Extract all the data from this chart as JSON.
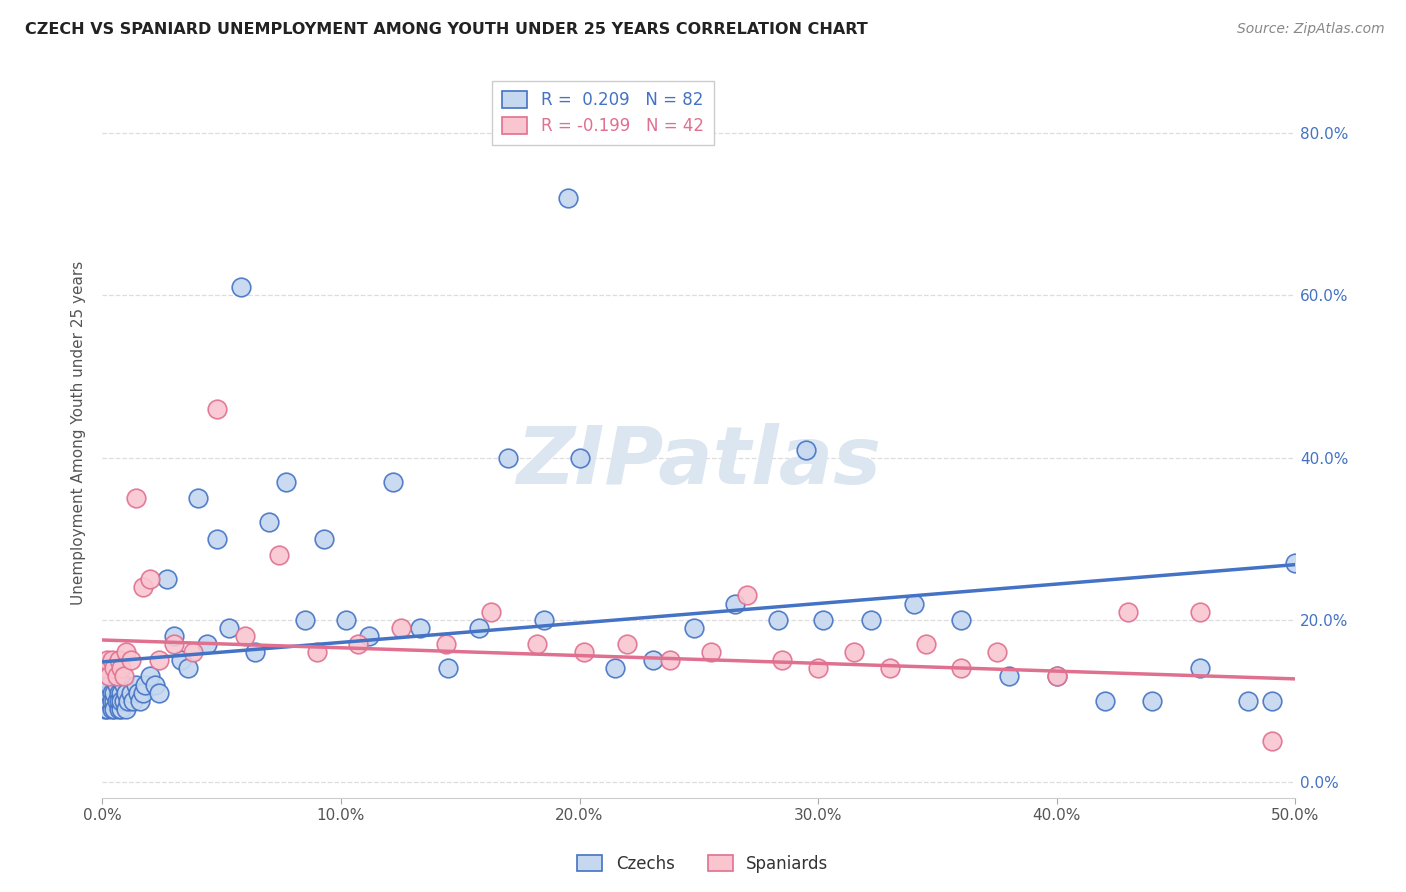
{
  "title": "CZECH VS SPANIARD UNEMPLOYMENT AMONG YOUTH UNDER 25 YEARS CORRELATION CHART",
  "source": "Source: ZipAtlas.com",
  "ylabel": "Unemployment Among Youth under 25 years",
  "xlim": [
    0.0,
    0.5
  ],
  "ylim": [
    -0.02,
    0.88
  ],
  "xticks": [
    0.0,
    0.1,
    0.2,
    0.3,
    0.4,
    0.5
  ],
  "yticks": [
    0.0,
    0.2,
    0.4,
    0.6,
    0.8
  ],
  "czech_fill_color": "#c5d8f0",
  "czech_edge_color": "#4472c4",
  "spanish_fill_color": "#f9c6d0",
  "spanish_edge_color": "#e07090",
  "czech_line_color": "#4472c4",
  "spanish_line_color": "#e07090",
  "czech_R": 0.209,
  "czech_N": 82,
  "spanish_R": -0.199,
  "spanish_N": 42,
  "watermark_color": "#dce6f0",
  "legend_label_czech": "Czechs",
  "legend_label_spanish": "Spaniards",
  "background_color": "#ffffff",
  "grid_color": "#dddddd",
  "axis_label_color": "#555555",
  "right_axis_color": "#4472c4",
  "czechs_x": [
    0.001,
    0.001,
    0.001,
    0.001,
    0.002,
    0.002,
    0.002,
    0.002,
    0.003,
    0.003,
    0.003,
    0.004,
    0.004,
    0.004,
    0.005,
    0.005,
    0.005,
    0.006,
    0.006,
    0.007,
    0.007,
    0.007,
    0.008,
    0.008,
    0.008,
    0.009,
    0.009,
    0.01,
    0.01,
    0.011,
    0.012,
    0.013,
    0.014,
    0.015,
    0.016,
    0.017,
    0.018,
    0.02,
    0.022,
    0.024,
    0.027,
    0.03,
    0.033,
    0.036,
    0.04,
    0.044,
    0.048,
    0.053,
    0.058,
    0.064,
    0.07,
    0.077,
    0.085,
    0.093,
    0.102,
    0.112,
    0.122,
    0.133,
    0.145,
    0.158,
    0.17,
    0.185,
    0.2,
    0.215,
    0.231,
    0.248,
    0.265,
    0.283,
    0.302,
    0.322,
    0.34,
    0.36,
    0.38,
    0.4,
    0.42,
    0.44,
    0.46,
    0.48,
    0.49,
    0.5,
    0.195,
    0.295
  ],
  "czechs_y": [
    0.11,
    0.1,
    0.12,
    0.09,
    0.1,
    0.11,
    0.09,
    0.12,
    0.1,
    0.11,
    0.12,
    0.09,
    0.11,
    0.1,
    0.1,
    0.11,
    0.09,
    0.1,
    0.12,
    0.09,
    0.11,
    0.1,
    0.09,
    0.11,
    0.1,
    0.1,
    0.12,
    0.09,
    0.11,
    0.1,
    0.11,
    0.1,
    0.12,
    0.11,
    0.1,
    0.11,
    0.12,
    0.13,
    0.12,
    0.11,
    0.25,
    0.18,
    0.15,
    0.14,
    0.35,
    0.17,
    0.3,
    0.19,
    0.61,
    0.16,
    0.32,
    0.37,
    0.2,
    0.3,
    0.2,
    0.18,
    0.37,
    0.19,
    0.14,
    0.19,
    0.4,
    0.2,
    0.4,
    0.14,
    0.15,
    0.19,
    0.22,
    0.2,
    0.2,
    0.2,
    0.22,
    0.2,
    0.13,
    0.13,
    0.1,
    0.1,
    0.14,
    0.1,
    0.1,
    0.27,
    0.72,
    0.41
  ],
  "spaniards_x": [
    0.001,
    0.002,
    0.003,
    0.004,
    0.005,
    0.006,
    0.007,
    0.008,
    0.009,
    0.01,
    0.012,
    0.014,
    0.017,
    0.02,
    0.024,
    0.03,
    0.038,
    0.048,
    0.06,
    0.074,
    0.09,
    0.107,
    0.125,
    0.144,
    0.163,
    0.182,
    0.202,
    0.22,
    0.238,
    0.255,
    0.27,
    0.285,
    0.3,
    0.315,
    0.33,
    0.345,
    0.36,
    0.375,
    0.4,
    0.43,
    0.46,
    0.49
  ],
  "spaniards_y": [
    0.14,
    0.15,
    0.13,
    0.15,
    0.14,
    0.13,
    0.15,
    0.14,
    0.13,
    0.16,
    0.15,
    0.35,
    0.24,
    0.25,
    0.15,
    0.17,
    0.16,
    0.46,
    0.18,
    0.28,
    0.16,
    0.17,
    0.19,
    0.17,
    0.21,
    0.17,
    0.16,
    0.17,
    0.15,
    0.16,
    0.23,
    0.15,
    0.14,
    0.16,
    0.14,
    0.17,
    0.14,
    0.16,
    0.13,
    0.21,
    0.21,
    0.05
  ],
  "czech_trend_x": [
    0.0,
    0.5
  ],
  "czech_trend_y": [
    0.148,
    0.268
  ],
  "spanish_trend_x": [
    0.0,
    0.5
  ],
  "spanish_trend_y": [
    0.175,
    0.127
  ]
}
